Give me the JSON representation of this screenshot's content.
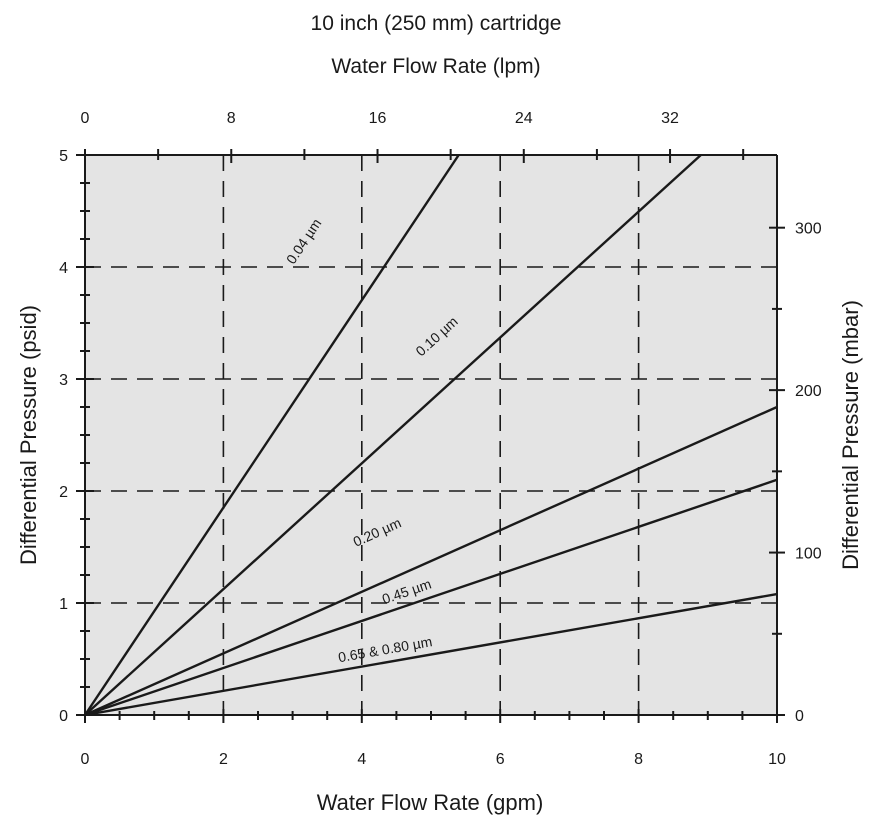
{
  "chart_data": {
    "type": "line",
    "title": "10 inch (250 mm) cartridge",
    "x_top_label": "Water Flow Rate (lpm)",
    "xlabel": "Water Flow Rate (gpm)",
    "ylabel": "Differential Pressure (psid)",
    "y_right_label": "Differential Pressure (mbar)",
    "xlim": [
      0,
      10
    ],
    "ylim": [
      0,
      5
    ],
    "x_ticks": [
      "0",
      "2",
      "4",
      "6",
      "8",
      "10"
    ],
    "x_top_ticks": [
      "0",
      "8",
      "16",
      "24",
      "32"
    ],
    "y_ticks": [
      "0",
      "1",
      "2",
      "3",
      "4",
      "5"
    ],
    "y_right_ticks": [
      "0",
      "100",
      "200",
      "300"
    ],
    "grid": "dashed",
    "series": [
      {
        "name": "0.04 µm",
        "x": [
          0,
          5.4
        ],
        "y": [
          0,
          5
        ]
      },
      {
        "name": "0.10 µm",
        "x": [
          0,
          8.9
        ],
        "y": [
          0,
          5
        ]
      },
      {
        "name": "0.20 µm",
        "x": [
          0,
          10
        ],
        "y": [
          0,
          2.75
        ]
      },
      {
        "name": "0.45 µm",
        "x": [
          0,
          10
        ],
        "y": [
          0,
          2.1
        ]
      },
      {
        "name": "0.65 & 0.80 µm",
        "x": [
          0,
          10
        ],
        "y": [
          0,
          1.08
        ]
      }
    ]
  },
  "colors": {
    "plot_bg": "#e4e4e4",
    "ink": "#1a1a1a"
  }
}
